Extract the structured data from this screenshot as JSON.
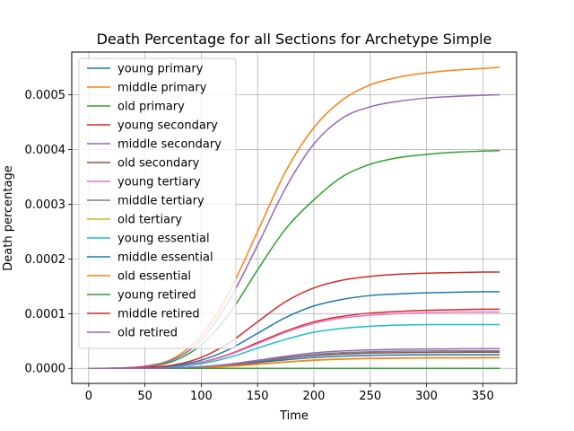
{
  "chart_data": {
    "type": "line",
    "title": "Death Percentage for all Sections for Archetype Simple",
    "xlabel": "Time",
    "ylabel": "Death percentage",
    "xlim": [
      -15,
      380
    ],
    "ylim": [
      -2.75e-05,
      0.000578
    ],
    "xticks": [
      0,
      50,
      100,
      150,
      200,
      250,
      300,
      350
    ],
    "yticks": [
      0.0,
      0.0001,
      0.0002,
      0.0003,
      0.0004,
      0.0005
    ],
    "ytick_labels": [
      "0.0000",
      "0.0001",
      "0.0002",
      "0.0003",
      "0.0004",
      "0.0005"
    ],
    "xtick_labels": [
      "0",
      "50",
      "100",
      "150",
      "200",
      "250",
      "300",
      "350"
    ],
    "grid": true,
    "legend_position": "upper-left",
    "x": [
      0,
      25,
      50,
      75,
      100,
      125,
      150,
      175,
      200,
      225,
      250,
      275,
      300,
      325,
      350,
      365
    ],
    "series": [
      {
        "name": "young primary",
        "color": "#1f77b4",
        "values": [
          0,
          0,
          2e-07,
          7e-07,
          2.2e-06,
          5.5e-06,
          1.05e-05,
          1.55e-05,
          1.98e-05,
          2.23e-05,
          2.37e-05,
          2.44e-05,
          2.48e-05,
          2.5e-05,
          2.5e-05,
          2.5e-05
        ]
      },
      {
        "name": "middle primary",
        "color": "#ff7f0e",
        "values": [
          0,
          4e-07,
          4e-06,
          1.8e-05,
          6e-05,
          0.00014,
          0.00025,
          0.00036,
          0.00044,
          0.00049,
          0.000518,
          0.000532,
          0.00054,
          0.000545,
          0.000548,
          0.00055
        ]
      },
      {
        "name": "old primary",
        "color": "#2ca02c",
        "values": [
          0,
          3e-07,
          3e-06,
          1.3e-05,
          4.3e-05,
          0.0001,
          0.00018,
          0.000255,
          0.000308,
          0.00035,
          0.000373,
          0.000385,
          0.000391,
          0.000395,
          0.000397,
          0.000398
        ]
      },
      {
        "name": "young secondary",
        "color": "#d62728",
        "values": [
          0,
          1e-07,
          1e-06,
          3.4e-06,
          1.1e-05,
          2.6e-05,
          4.7e-05,
          6.8e-05,
          8.5e-05,
          9.5e-05,
          0.000101,
          0.000104,
          0.000106,
          0.000107,
          0.000108,
          0.000108
        ]
      },
      {
        "name": "middle secondary",
        "color": "#9467bd",
        "values": [
          0,
          4e-07,
          3.6e-06,
          1.6e-05,
          5.2e-05,
          0.000125,
          0.000225,
          0.00033,
          0.00041,
          0.000457,
          0.000478,
          0.000488,
          0.000494,
          0.000497,
          0.000499,
          0.0005
        ]
      },
      {
        "name": "old secondary",
        "color": "#8c564b",
        "values": [
          0,
          0,
          2e-07,
          8e-07,
          2.6e-06,
          6.5e-06,
          1.23e-05,
          1.85e-05,
          2.35e-05,
          2.63e-05,
          2.79e-05,
          2.88e-05,
          2.92e-05,
          2.94e-05,
          2.95e-05,
          2.96e-05
        ]
      },
      {
        "name": "young tertiary",
        "color": "#e377c2",
        "values": [
          0,
          1e-07,
          1e-06,
          3.3e-06,
          1.05e-05,
          2.5e-05,
          4.5e-05,
          6.6e-05,
          8.2e-05,
          9.2e-05,
          9.7e-05,
          0.0001,
          0.000102,
          0.000103,
          0.000103,
          0.000103
        ]
      },
      {
        "name": "middle tertiary",
        "color": "#7f7f7f",
        "values": [
          0,
          0,
          2e-07,
          9e-07,
          2.9e-06,
          7e-06,
          1.33e-05,
          2e-05,
          2.53e-05,
          2.86e-05,
          3.03e-05,
          3.13e-05,
          3.18e-05,
          3.2e-05,
          3.2e-05,
          3.2e-05
        ]
      },
      {
        "name": "old tertiary",
        "color": "#bcbd22",
        "values": [
          0,
          0,
          1e-07,
          4e-07,
          1.4e-06,
          3.6e-06,
          7.2e-06,
          1.12e-05,
          1.45e-05,
          1.66e-05,
          1.78e-05,
          1.85e-05,
          1.88e-05,
          1.9e-05,
          1.9e-05,
          1.9e-05
        ]
      },
      {
        "name": "young essential",
        "color": "#17becf",
        "values": [
          0,
          1e-07,
          8e-07,
          2.6e-06,
          8.5e-06,
          2e-05,
          3.7e-05,
          5.3e-05,
          6.6e-05,
          7.3e-05,
          7.7e-05,
          7.9e-05,
          8e-05,
          8e-05,
          8e-05,
          8e-05
        ]
      },
      {
        "name": "middle essential",
        "color": "#1f77b4",
        "values": [
          0,
          1e-07,
          1.4e-06,
          4.7e-06,
          1.5e-05,
          3.5e-05,
          6.4e-05,
          9.3e-05,
          0.000114,
          0.000126,
          0.000133,
          0.000136,
          0.000138,
          0.000139,
          0.00014,
          0.00014
        ]
      },
      {
        "name": "old essential",
        "color": "#ff7f0e",
        "values": [
          0,
          0,
          1e-07,
          5e-07,
          1.6e-06,
          4e-06,
          7.8e-06,
          1.18e-05,
          1.52e-05,
          1.72e-05,
          1.83e-05,
          1.89e-05,
          1.93e-05,
          1.95e-05,
          1.96e-05,
          1.96e-05
        ]
      },
      {
        "name": "young retired",
        "color": "#2ca02c",
        "values": [
          0,
          0,
          0,
          0,
          0,
          0,
          0,
          0,
          0,
          0,
          0,
          0,
          0,
          0,
          0,
          0
        ]
      },
      {
        "name": "middle retired",
        "color": "#d62728",
        "values": [
          0,
          2e-07,
          1.8e-06,
          5.9e-06,
          2e-05,
          4.7e-05,
          8.5e-05,
          0.000122,
          0.000147,
          0.000161,
          0.000168,
          0.000172,
          0.000174,
          0.000175,
          0.000176,
          0.000176
        ]
      },
      {
        "name": "old retired",
        "color": "#9467bd",
        "values": [
          0,
          0,
          2e-07,
          9e-07,
          3.1e-06,
          7.8e-06,
          1.48e-05,
          2.22e-05,
          2.83e-05,
          3.18e-05,
          3.37e-05,
          3.48e-05,
          3.54e-05,
          3.57e-05,
          3.59e-05,
          3.6e-05
        ]
      }
    ]
  }
}
